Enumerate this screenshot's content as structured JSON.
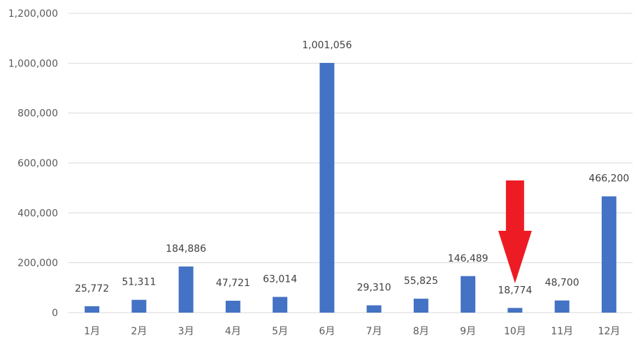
{
  "chart_data": {
    "type": "bar",
    "categories": [
      "1月",
      "2月",
      "3月",
      "4月",
      "5月",
      "6月",
      "7月",
      "8月",
      "9月",
      "10月",
      "11月",
      "12月"
    ],
    "values": [
      25772,
      51311,
      184886,
      47721,
      63014,
      1001056,
      29310,
      55825,
      146489,
      18774,
      48700,
      466200
    ],
    "data_labels": [
      "25,772",
      "51,311",
      "184,886",
      "47,721",
      "63,014",
      "1,001,056",
      "29,310",
      "55,825",
      "146,489",
      "18,774",
      "48,700",
      "466,200"
    ],
    "y_ticks": [
      "0",
      "200,000",
      "400,000",
      "600,000",
      "800,000",
      "1,000,000",
      "1,200,000"
    ],
    "ylim": [
      0,
      1200000
    ],
    "grid": true,
    "title": "",
    "xlabel": "",
    "ylabel": "",
    "bar_color": "#4472C4",
    "grid_color": "#D9D9D9",
    "annotation": {
      "type": "arrow",
      "target_category": "10月",
      "color": "#ED1C24"
    }
  }
}
